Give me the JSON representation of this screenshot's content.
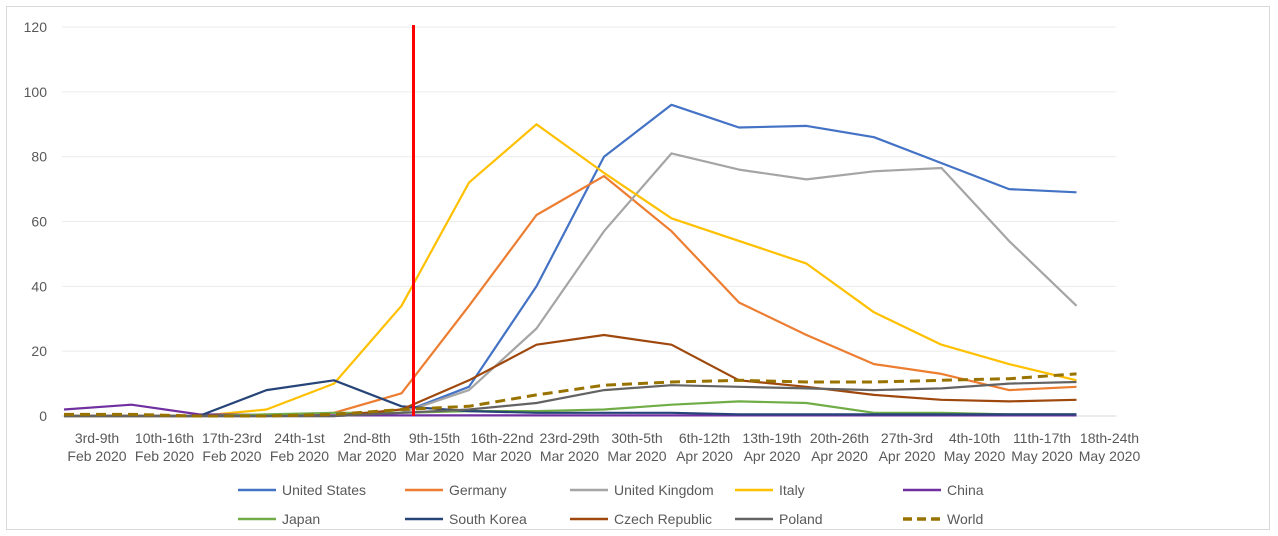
{
  "chart_data": {
    "type": "line",
    "categories": [
      [
        "3rd-9th",
        "Feb 2020"
      ],
      [
        "10th-16th",
        "Feb 2020"
      ],
      [
        "17th-23rd",
        "Feb 2020"
      ],
      [
        "24th-1st",
        "Feb 2020"
      ],
      [
        "2nd-8th",
        "Mar 2020"
      ],
      [
        "9th-15th",
        "Mar 2020"
      ],
      [
        "16th-22nd",
        "Mar 2020"
      ],
      [
        "23rd-29th",
        "Mar 2020"
      ],
      [
        "30th-5th",
        "Mar 2020"
      ],
      [
        "6th-12th",
        "Apr 2020"
      ],
      [
        "13th-19th",
        "Apr 2020"
      ],
      [
        "20th-26th",
        "Apr 2020"
      ],
      [
        "27th-3rd",
        "Apr 2020"
      ],
      [
        "4th-10th",
        "May 2020"
      ],
      [
        "11th-17th",
        "May 2020"
      ],
      [
        "18th-24th",
        "May 2020"
      ]
    ],
    "ylim": [
      0,
      120
    ],
    "yticks": [
      0,
      20,
      40,
      60,
      80,
      100,
      120
    ],
    "grid": true,
    "legend_position": "bottom",
    "marker": {
      "category_index": 5,
      "color": "#ff0000"
    },
    "series": [
      {
        "name": "United States",
        "color": "#4472c4",
        "dashed": false,
        "values": [
          0,
          0,
          0,
          0,
          0,
          1,
          9,
          40,
          80,
          96,
          89,
          89.5,
          86,
          78,
          70,
          69
        ]
      },
      {
        "name": "Germany",
        "color": "#ed7d31",
        "dashed": false,
        "values": [
          0,
          0,
          0,
          0,
          1,
          7,
          34,
          62,
          74,
          57,
          35,
          25,
          16,
          13,
          8,
          9
        ]
      },
      {
        "name": "United Kingdom",
        "color": "#a5a5a5",
        "dashed": false,
        "values": [
          0,
          0,
          0,
          0,
          0,
          1,
          8,
          27,
          57,
          81,
          76,
          73,
          75.5,
          76.5,
          54,
          34
        ]
      },
      {
        "name": "Italy",
        "color": "#ffc000",
        "dashed": false,
        "values": [
          0,
          0,
          0,
          2,
          10,
          34,
          72,
          90,
          75,
          61,
          54,
          47,
          32,
          22,
          16,
          11
        ]
      },
      {
        "name": "China",
        "color": "#7030a0",
        "dashed": false,
        "values": [
          2,
          3.5,
          0.5,
          0.3,
          0.2,
          0.2,
          0.2,
          0.2,
          0.2,
          0.2,
          0.2,
          0.2,
          0.2,
          0.2,
          0.2,
          0.2
        ]
      },
      {
        "name": "Japan",
        "color": "#70ad47",
        "dashed": false,
        "values": [
          0,
          0,
          0,
          0.5,
          1,
          1,
          1.5,
          1.5,
          2,
          3.5,
          4.5,
          4,
          1,
          1,
          0.5,
          0.5
        ]
      },
      {
        "name": "South Korea",
        "color": "#264478",
        "dashed": false,
        "values": [
          0,
          0,
          0,
          8,
          11,
          3,
          1.5,
          1,
          1,
          1,
          0.5,
          0.5,
          0.5,
          0.5,
          0.5,
          0.5
        ]
      },
      {
        "name": "Czech Republic",
        "color": "#9e480e",
        "dashed": false,
        "values": [
          0,
          0,
          0,
          0,
          0,
          2,
          11,
          22,
          25,
          22,
          11,
          9,
          6.5,
          5,
          4.5,
          5
        ]
      },
      {
        "name": "Poland",
        "color": "#636363",
        "dashed": false,
        "values": [
          0,
          0,
          0,
          0,
          0,
          1,
          2,
          4,
          8,
          9.5,
          9,
          8.5,
          8,
          8.5,
          10,
          10.5
        ]
      },
      {
        "name": "World",
        "color": "#997300",
        "dashed": true,
        "values": [
          0.5,
          0.5,
          0,
          0,
          0.5,
          2,
          3,
          6.5,
          9.5,
          10.5,
          11,
          10.5,
          10.5,
          11,
          11.5,
          13
        ]
      }
    ]
  }
}
